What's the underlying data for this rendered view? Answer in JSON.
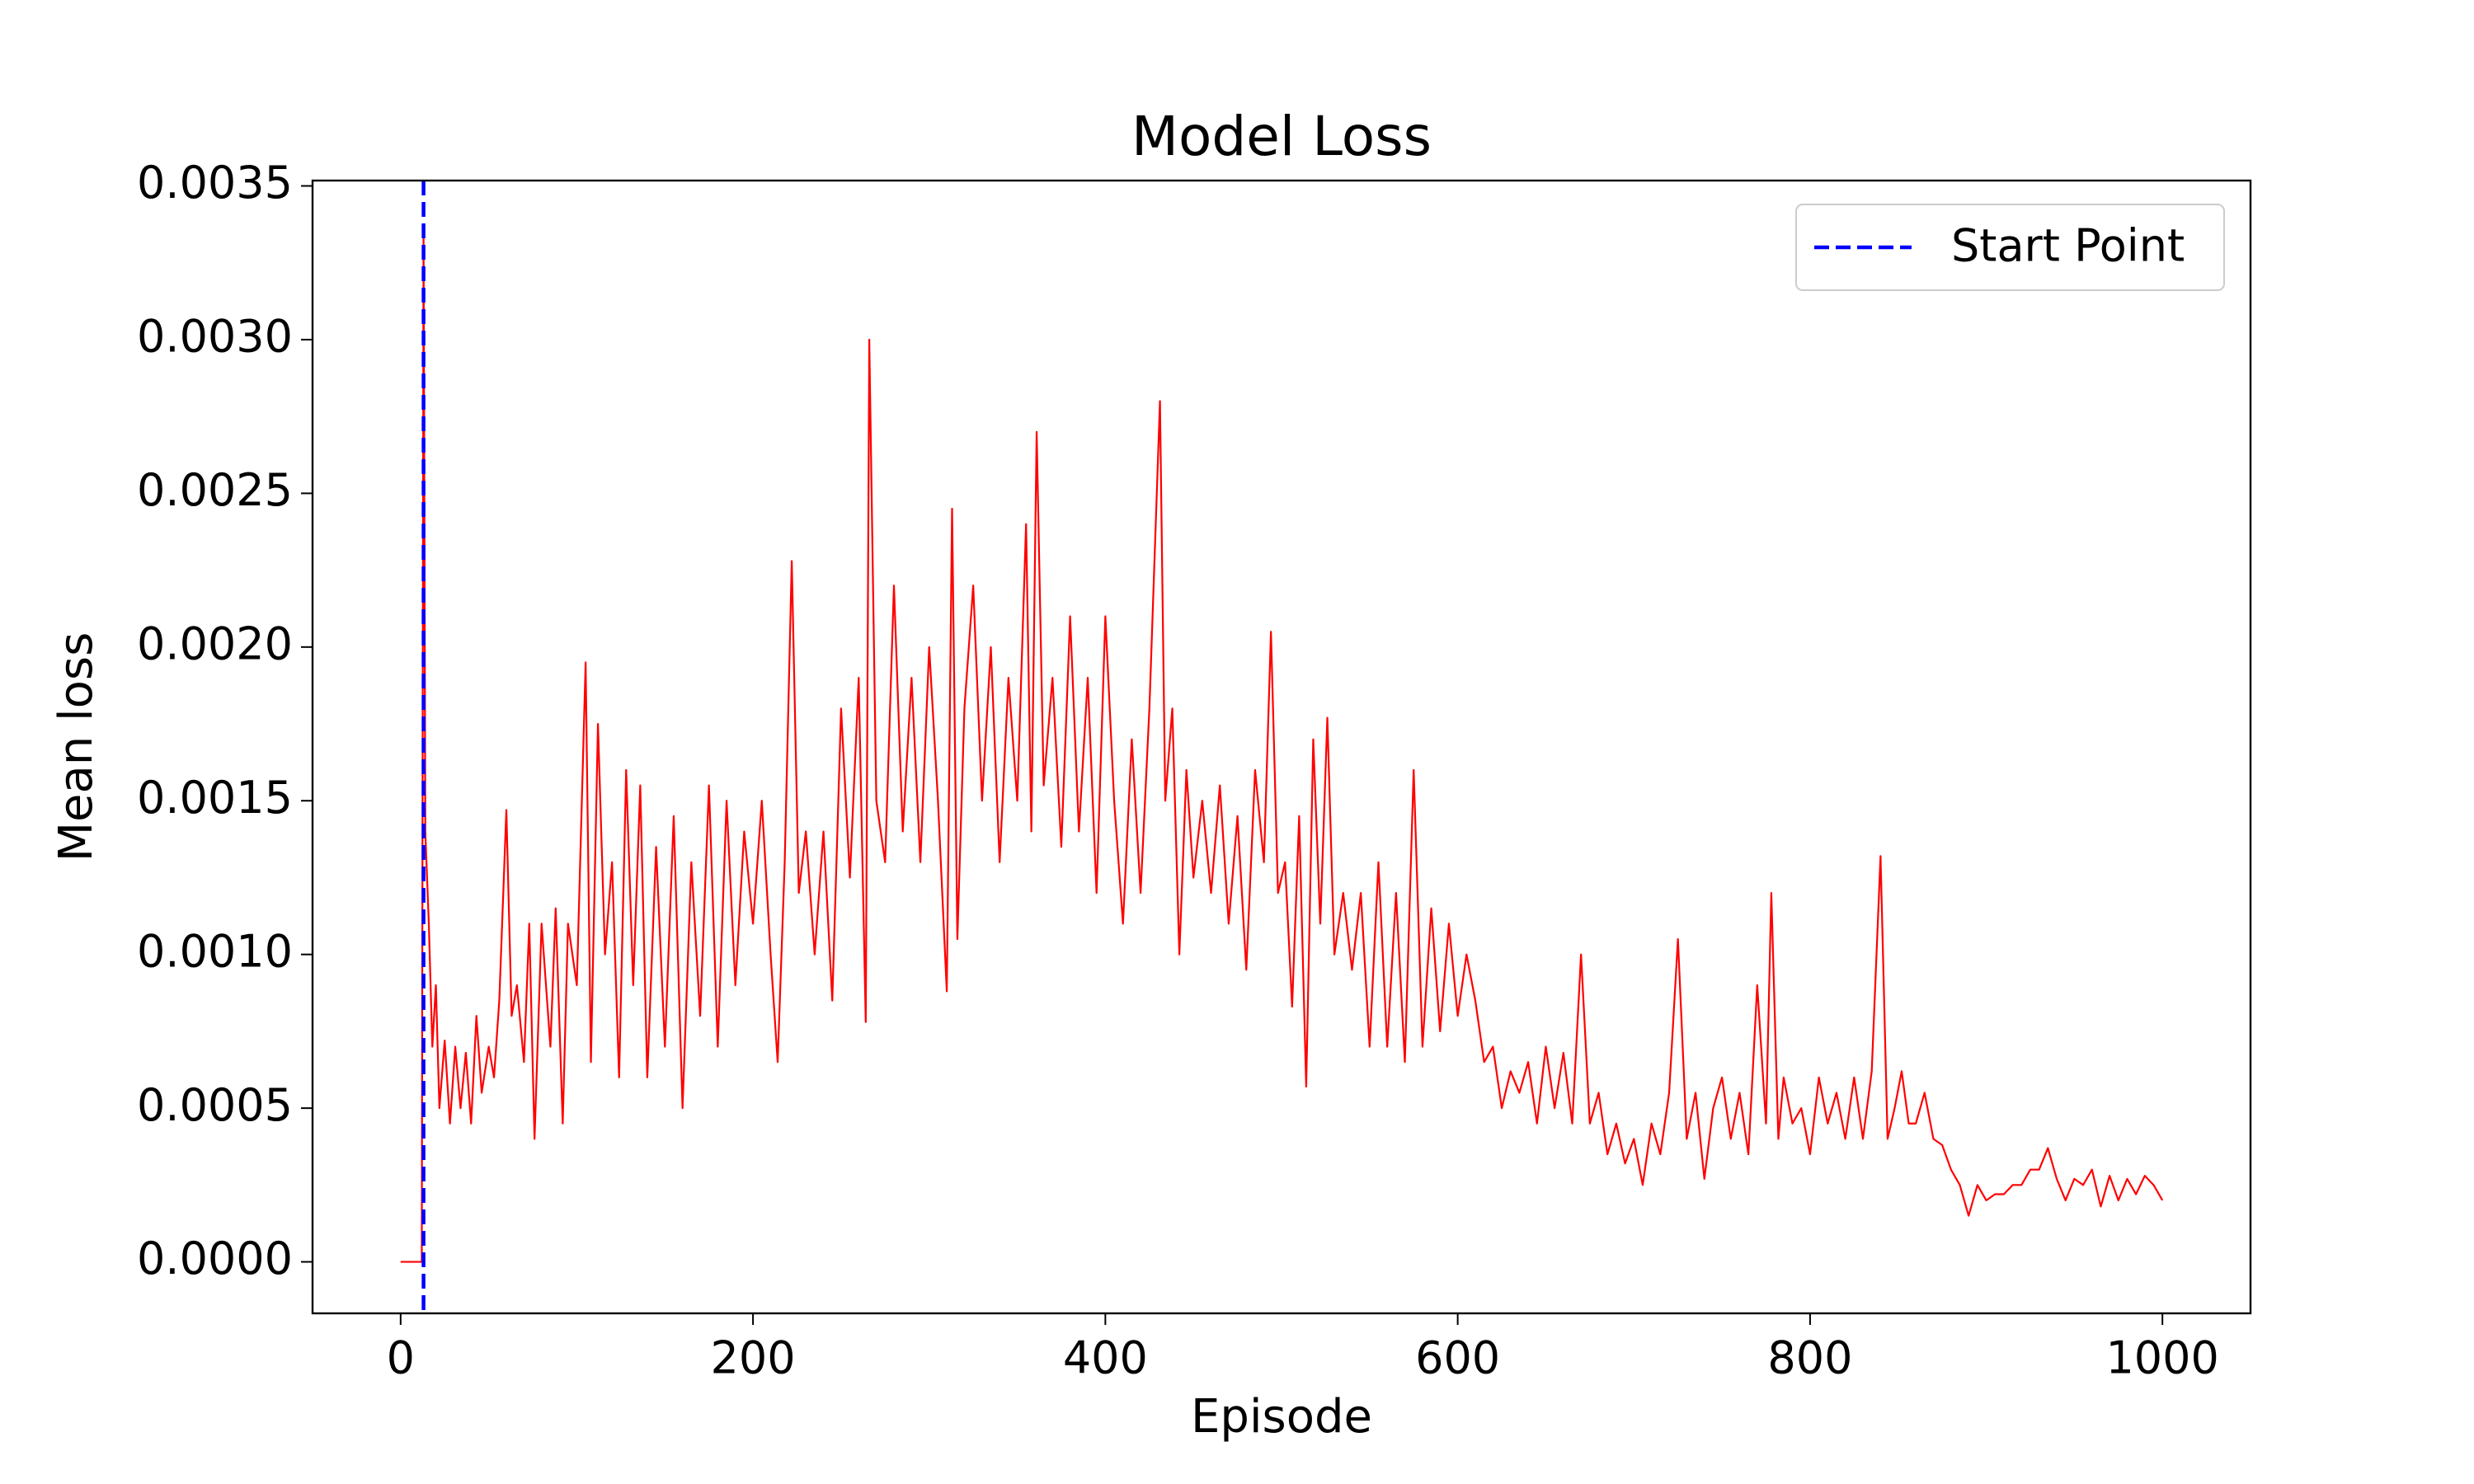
{
  "chart_data": {
    "type": "line",
    "title": "Model Loss",
    "x_label": "Episode",
    "y_label": "Mean loss",
    "color": "red",
    "x": [
      0,
      12,
      13,
      14,
      16,
      18,
      20,
      22,
      25,
      28,
      31,
      34,
      37,
      40,
      43,
      46,
      50,
      53,
      56,
      60,
      63,
      66,
      70,
      73,
      76,
      80,
      85,
      88,
      92,
      95,
      100,
      105,
      108,
      112,
      116,
      120,
      124,
      128,
      132,
      136,
      140,
      145,
      150,
      155,
      160,
      165,
      170,
      175,
      180,
      185,
      190,
      195,
      200,
      205,
      210,
      214,
      218,
      222,
      226,
      230,
      235,
      240,
      245,
      250,
      255,
      260,
      264,
      266,
      270,
      275,
      280,
      285,
      290,
      295,
      300,
      305,
      310,
      313,
      316,
      320,
      325,
      330,
      335,
      340,
      345,
      350,
      355,
      358,
      361,
      365,
      370,
      375,
      380,
      385,
      390,
      395,
      400,
      405,
      410,
      415,
      420,
      425,
      431,
      434,
      438,
      442,
      446,
      450,
      455,
      460,
      465,
      470,
      475,
      480,
      485,
      490,
      494,
      498,
      502,
      506,
      510,
      514,
      518,
      522,
      526,
      530,
      535,
      540,
      545,
      550,
      555,
      560,
      565,
      570,
      575,
      580,
      585,
      590,
      595,
      600,
      605,
      610,
      615,
      620,
      625,
      630,
      635,
      640,
      645,
      650,
      655,
      660,
      665,
      670,
      675,
      680,
      685,
      690,
      695,
      700,
      705,
      710,
      715,
      720,
      725,
      730,
      735,
      740,
      745,
      750,
      755,
      760,
      765,
      770,
      775,
      778,
      782,
      785,
      790,
      795,
      800,
      805,
      810,
      815,
      820,
      825,
      830,
      835,
      840,
      844,
      848,
      852,
      856,
      860,
      865,
      870,
      875,
      880,
      885,
      890,
      895,
      900,
      905,
      910,
      915,
      920,
      925,
      930,
      935,
      940,
      945,
      950,
      955,
      960,
      965,
      970,
      975,
      980,
      985,
      990,
      995,
      1000
    ],
    "values": [
      0,
      0,
      0.00335,
      0.0014,
      0.0011,
      0.0007,
      0.0009,
      0.0005,
      0.00072,
      0.00045,
      0.0007,
      0.0005,
      0.00068,
      0.00045,
      0.0008,
      0.00055,
      0.0007,
      0.0006,
      0.00085,
      0.00147,
      0.0008,
      0.0009,
      0.00065,
      0.0011,
      0.0004,
      0.0011,
      0.0007,
      0.00115,
      0.00045,
      0.0011,
      0.0009,
      0.00195,
      0.00065,
      0.00175,
      0.001,
      0.0013,
      0.0006,
      0.0016,
      0.0009,
      0.00155,
      0.0006,
      0.00135,
      0.0007,
      0.00145,
      0.0005,
      0.0013,
      0.0008,
      0.00155,
      0.0007,
      0.0015,
      0.0009,
      0.0014,
      0.0011,
      0.0015,
      0.001,
      0.00065,
      0.0013,
      0.00228,
      0.0012,
      0.0014,
      0.001,
      0.0014,
      0.00085,
      0.0018,
      0.00125,
      0.0019,
      0.00078,
      0.003,
      0.0015,
      0.0013,
      0.0022,
      0.0014,
      0.0019,
      0.0013,
      0.002,
      0.0015,
      0.00088,
      0.00245,
      0.00105,
      0.0018,
      0.0022,
      0.0015,
      0.002,
      0.0013,
      0.0019,
      0.0015,
      0.0024,
      0.0014,
      0.0027,
      0.00155,
      0.0019,
      0.00135,
      0.0021,
      0.0014,
      0.0019,
      0.0012,
      0.0021,
      0.0015,
      0.0011,
      0.0017,
      0.0012,
      0.0018,
      0.0028,
      0.0015,
      0.0018,
      0.001,
      0.0016,
      0.00125,
      0.0015,
      0.0012,
      0.00155,
      0.0011,
      0.00145,
      0.00095,
      0.0016,
      0.0013,
      0.00205,
      0.0012,
      0.0013,
      0.00083,
      0.00145,
      0.00057,
      0.0017,
      0.0011,
      0.00177,
      0.001,
      0.0012,
      0.00095,
      0.0012,
      0.0007,
      0.0013,
      0.0007,
      0.0012,
      0.00065,
      0.0016,
      0.0007,
      0.00115,
      0.00075,
      0.0011,
      0.0008,
      0.001,
      0.00085,
      0.00065,
      0.0007,
      0.0005,
      0.00062,
      0.00055,
      0.00065,
      0.00045,
      0.0007,
      0.0005,
      0.00068,
      0.00045,
      0.001,
      0.00045,
      0.00055,
      0.00035,
      0.00045,
      0.00032,
      0.0004,
      0.00025,
      0.00045,
      0.00035,
      0.00055,
      0.00105,
      0.0004,
      0.00055,
      0.00027,
      0.0005,
      0.0006,
      0.0004,
      0.00055,
      0.00035,
      0.0009,
      0.00045,
      0.0012,
      0.0004,
      0.0006,
      0.00045,
      0.0005,
      0.00035,
      0.0006,
      0.00045,
      0.00055,
      0.0004,
      0.0006,
      0.0004,
      0.00062,
      0.00132,
      0.0004,
      0.0005,
      0.00062,
      0.00045,
      0.00045,
      0.00055,
      0.0004,
      0.00038,
      0.0003,
      0.00025,
      0.00015,
      0.00025,
      0.0002,
      0.00022,
      0.00022,
      0.00025,
      0.00025,
      0.0003,
      0.0003,
      0.00037,
      0.00027,
      0.0002,
      0.00027,
      0.00025,
      0.0003,
      0.00018,
      0.00028,
      0.0002,
      0.00027,
      0.00022,
      0.00028,
      0.00025,
      0.0002
    ],
    "vlines": [
      {
        "name": "Start Point",
        "x": 13,
        "color": "blue",
        "style": "dashed"
      }
    ],
    "legend": "upper right",
    "xlim": [
      -50,
      1050
    ],
    "ylim": [
      -0.0001675,
      0.0035175
    ],
    "xticks": [
      0,
      200,
      400,
      600,
      800,
      1000
    ],
    "yticks": [
      {
        "value": 0,
        "label": "0.0000"
      },
      {
        "value": 0.0005,
        "label": "0.0005"
      },
      {
        "value": 0.001,
        "label": "0.0010"
      },
      {
        "value": 0.0015,
        "label": "0.0015"
      },
      {
        "value": 0.002,
        "label": "0.0020"
      },
      {
        "value": 0.0025,
        "label": "0.0025"
      },
      {
        "value": 0.003,
        "label": "0.0030"
      },
      {
        "value": 0.0035,
        "label": "0.0035"
      }
    ],
    "grid": false
  }
}
